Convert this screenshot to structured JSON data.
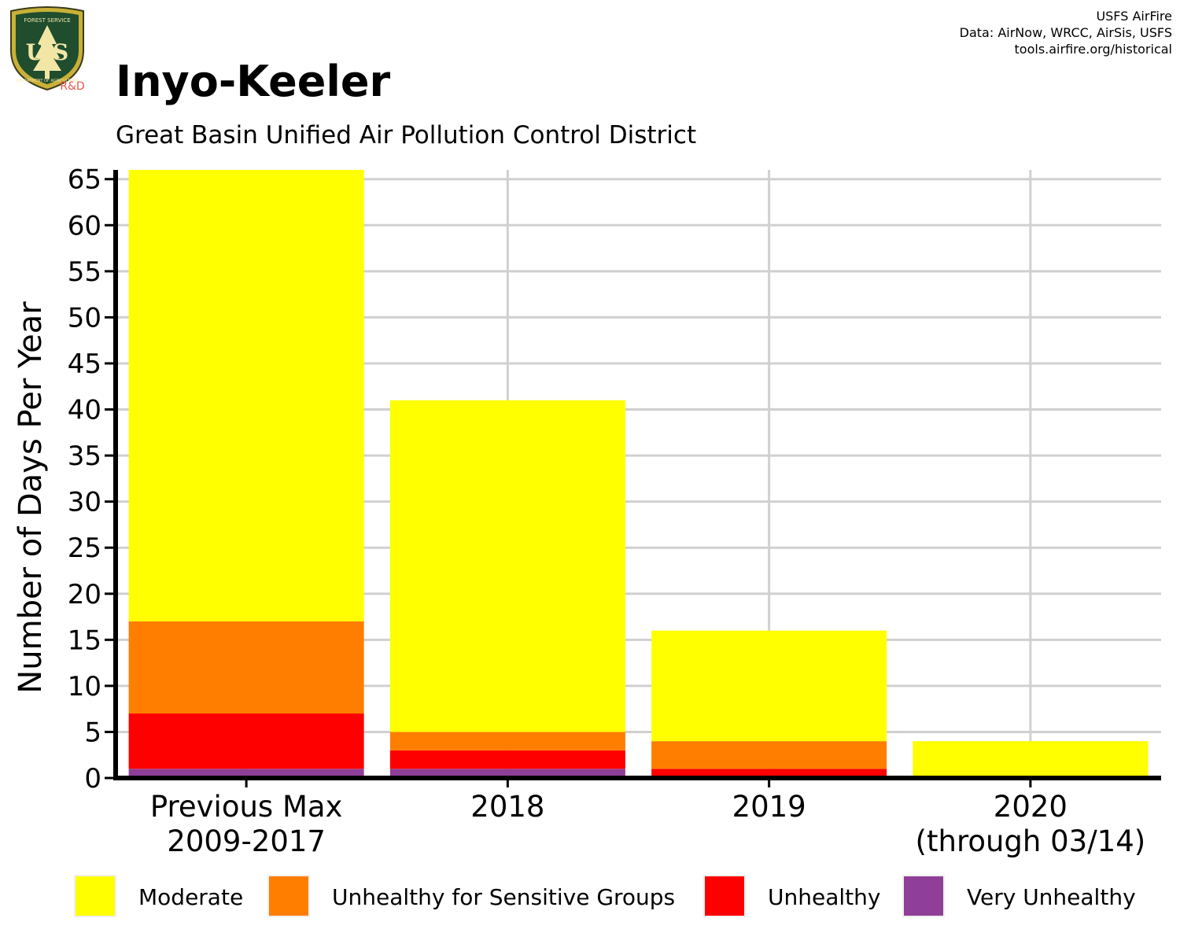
{
  "header": {
    "title": "Inyo-Keeler",
    "subtitle": "Great Basin Unified Air Pollution Control District"
  },
  "credits": {
    "line1": "USFS AirFire",
    "line2": "Data: AirNow, WRCC, AirSis, USFS",
    "line3": "tools.airfire.org/historical"
  },
  "logo": {
    "top_text": "FOREST SERVICE",
    "letters": "U S",
    "bottom_text": "DEPARTMENT OF AGRICULTURE",
    "tag": "R&D"
  },
  "legend": [
    {
      "label": "Moderate",
      "color": "#ffff00"
    },
    {
      "label": "Unhealthy for Sensitive Groups",
      "color": "#ff7e00"
    },
    {
      "label": "Unhealthy",
      "color": "#ff0000"
    },
    {
      "label": "Very Unhealthy",
      "color": "#8f3f97"
    }
  ],
  "chart_data": {
    "type": "bar",
    "stacked": true,
    "categories": [
      [
        "Previous Max",
        "2009-2017"
      ],
      [
        "2018"
      ],
      [
        "2019"
      ],
      [
        "2020",
        "(through 03/14)"
      ]
    ],
    "ylabel": "Number of Days Per Year",
    "xlabel": "",
    "ylim": [
      0,
      66
    ],
    "yticks": [
      0,
      5,
      10,
      15,
      20,
      25,
      30,
      35,
      40,
      45,
      50,
      55,
      60,
      65
    ],
    "grid": true,
    "legend_position": "bottom",
    "series": [
      {
        "name": "Very Unhealthy",
        "color": "#8f3f97",
        "values": [
          1,
          1,
          0,
          0
        ]
      },
      {
        "name": "Unhealthy",
        "color": "#ff0000",
        "values": [
          6,
          2,
          1,
          0
        ]
      },
      {
        "name": "Unhealthy for Sensitive Groups",
        "color": "#ff7e00",
        "values": [
          10,
          2,
          3,
          0
        ]
      },
      {
        "name": "Moderate",
        "color": "#ffff00",
        "values": [
          49,
          36,
          12,
          4
        ]
      }
    ]
  }
}
